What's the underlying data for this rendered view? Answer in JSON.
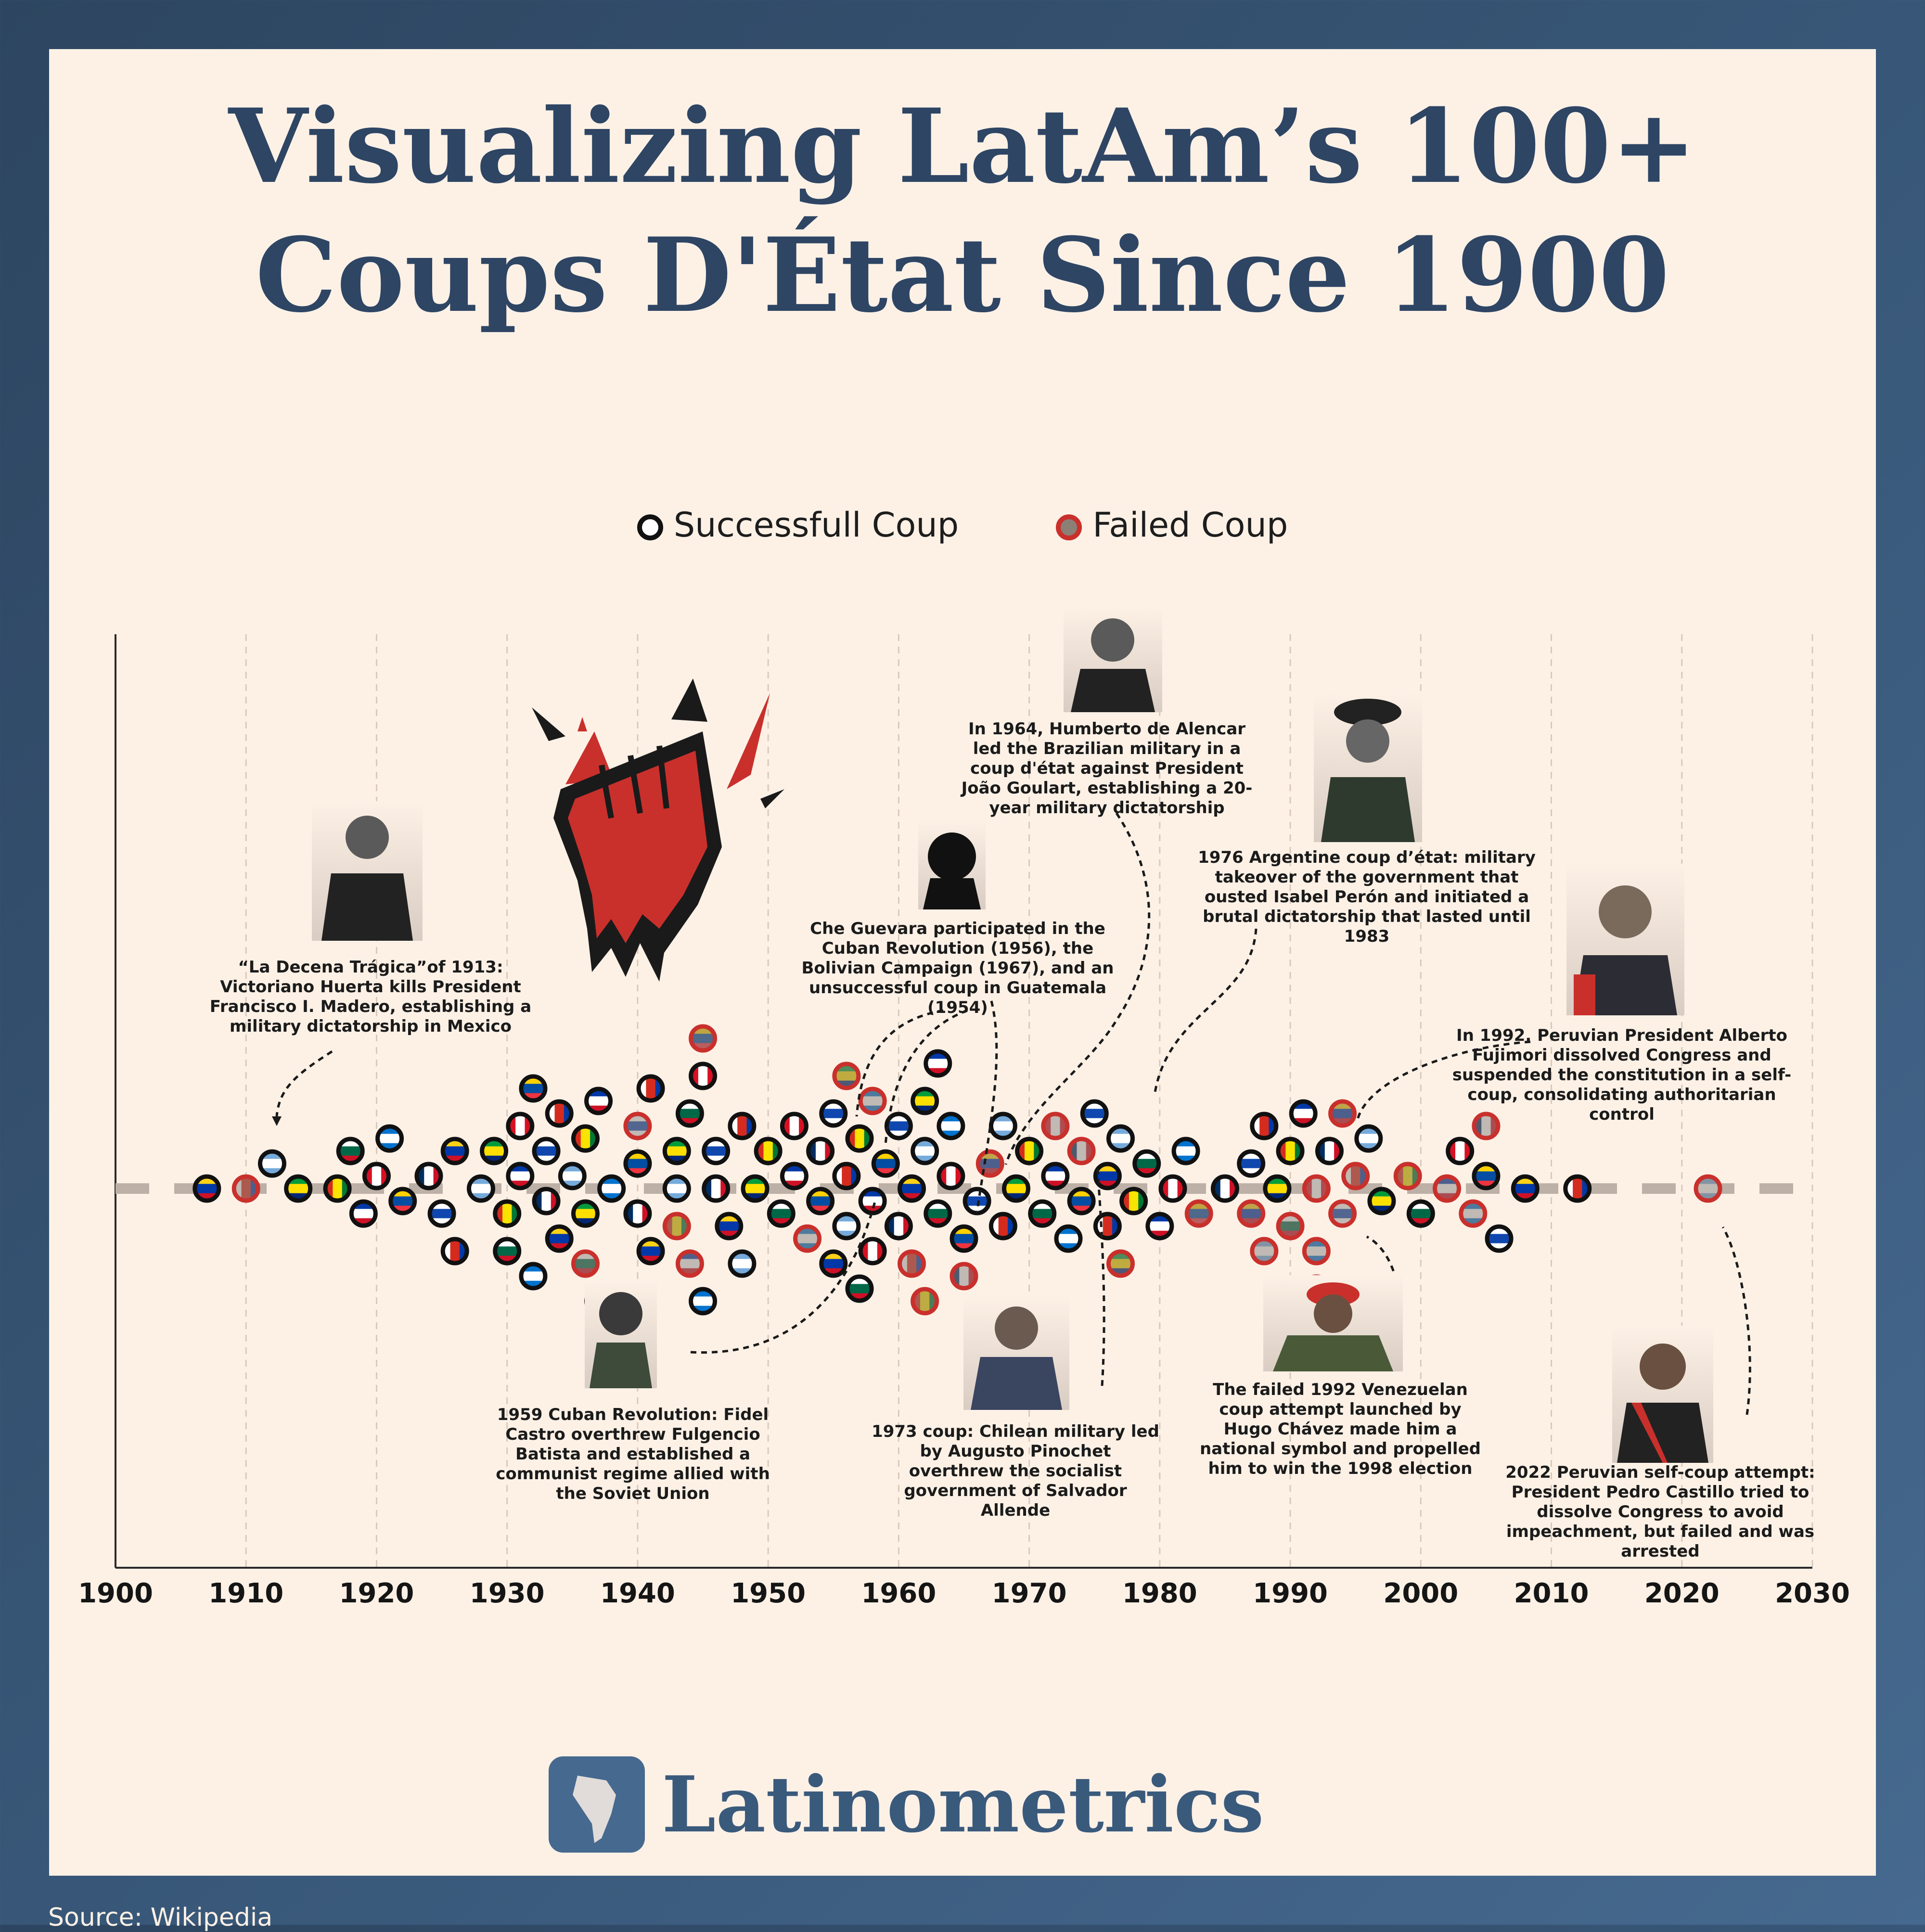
{
  "title": {
    "line1": "Visualizing LatAm’s 100+",
    "line2": "Coups D'État Since 1900"
  },
  "legend": {
    "success_label": "Successfull Coup",
    "failed_label": "Failed Coup"
  },
  "annotations": {
    "mexico_1913": "“La Decena Trágica”of 1913: Victoriano Huerta kills President Francisco I. Madero, establishing a military dictatorship in Mexico",
    "brazil_1964": "In 1964, Humberto de Alencar led the Brazilian military in a coup d'état against President João Goulart, establishing a 20-year military dictatorship",
    "che_guevara": "Che Guevara participated in the Cuban Revolution (1956), the Bolivian Campaign (1967), and an unsuccessful coup in Guatemala (1954)",
    "argentina_1976": "1976 Argentine coup d’état: military takeover of the government that ousted Isabel Perón and initiated a brutal dictatorship that lasted until 1983",
    "peru_1992": "In 1992, Peruvian President Alberto Fujimori dissolved Congress and suspended the constitution in a self-coup, consolidating authoritarian control",
    "cuba_1959": "1959 Cuban Revolution: Fidel Castro overthrew Fulgencio Batista and established a communist regime allied with the Soviet Union",
    "chile_1973": "1973 coup: Chilean military led by Augusto Pinochet overthrew the socialist government of Salvador Allende",
    "venezuela_1992": "The failed 1992 Venezuelan coup attempt launched by Hugo Chávez made him a national symbol and propelled him to win the 1998 election",
    "peru_2022": "2022 Peruvian self-coup attempt: President Pedro Castillo tried to dissolve Congress to avoid impeachment, but failed and was arrested"
  },
  "brand": {
    "name": "Latinometrics"
  },
  "source": "Source: Wikipedia",
  "colors": {
    "navy": "#2e4564",
    "background": "#fdf1e6",
    "success_ring": "#111111",
    "failed_ring": "#c9302c"
  },
  "chart_data": {
    "type": "scatter",
    "subtype": "beeswarm",
    "x_ticks": [
      "1900",
      "1910",
      "1920",
      "1930",
      "1940",
      "1950",
      "1960",
      "1970",
      "1980",
      "1990",
      "2000",
      "2010",
      "2020",
      "2030"
    ],
    "xlim": [
      1900,
      2030
    ],
    "grid": true,
    "legend_position": "top-center",
    "series": [
      {
        "name": "Successfull Coup",
        "outcome": "success",
        "years": [
          1907,
          1912,
          1914,
          1917,
          1918,
          1919,
          1920,
          1921,
          1922,
          1924,
          1925,
          1926,
          1926,
          1928,
          1929,
          1930,
          1930,
          1931,
          1931,
          1932,
          1932,
          1933,
          1933,
          1934,
          1934,
          1935,
          1936,
          1936,
          1937,
          1937,
          1938,
          1940,
          1940,
          1941,
          1941,
          1943,
          1943,
          1944,
          1945,
          1945,
          1946,
          1946,
          1947,
          1948,
          1948,
          1949,
          1950,
          1951,
          1952,
          1952,
          1954,
          1954,
          1955,
          1955,
          1956,
          1956,
          1957,
          1957,
          1958,
          1958,
          1959,
          1960,
          1960,
          1961,
          1962,
          1962,
          1963,
          1963,
          1964,
          1964,
          1965,
          1966,
          1968,
          1968,
          1969,
          1970,
          1971,
          1972,
          1973,
          1974,
          1975,
          1976,
          1976,
          1977,
          1978,
          1979,
          1980,
          1981,
          1982,
          1985,
          1987,
          1988,
          1989,
          1990,
          1991,
          1993,
          1996,
          1997,
          2000,
          2003,
          2005,
          2006,
          2008,
          2012
        ]
      },
      {
        "name": "Failed Coup",
        "outcome": "failed",
        "years": [
          1910,
          1936,
          1940,
          1943,
          1944,
          1945,
          1953,
          1956,
          1958,
          1961,
          1962,
          1965,
          1967,
          1972,
          1974,
          1977,
          1983,
          1987,
          1988,
          1990,
          1992,
          1992,
          1992,
          1994,
          1994,
          1995,
          1999,
          2002,
          2004,
          2005,
          2022
        ]
      }
    ]
  }
}
